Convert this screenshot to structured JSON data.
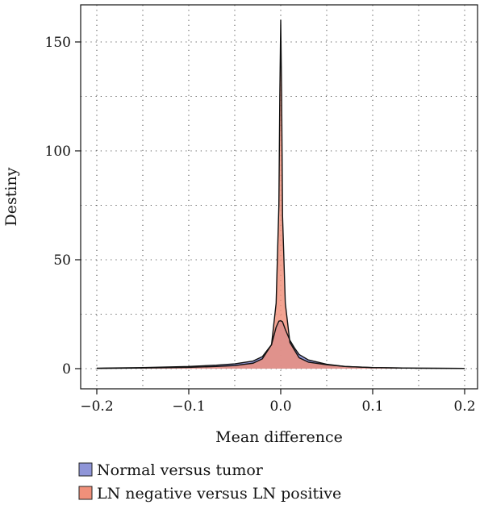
{
  "chart_data": {
    "type": "area",
    "title": "",
    "xlabel": "Mean difference",
    "ylabel": "Destiny",
    "xlim": [
      -0.2,
      0.2
    ],
    "ylim": [
      0,
      165
    ],
    "x_ticks": [
      -0.2,
      -0.1,
      0.0,
      0.1,
      0.2
    ],
    "x_tick_labels": [
      "−0.2",
      "−0.1",
      "0.0",
      "0.1",
      "0.2"
    ],
    "y_ticks": [
      0,
      50,
      100,
      150
    ],
    "y_tick_labels": [
      "0",
      "50",
      "100",
      "150"
    ],
    "grid": true,
    "legend_position": "bottom",
    "series": [
      {
        "name": "Normal versus tumor",
        "color": "#8f95d8",
        "x": [
          -0.2,
          -0.15,
          -0.1,
          -0.07,
          -0.05,
          -0.03,
          -0.02,
          -0.01,
          -0.005,
          -0.002,
          0.0,
          0.002,
          0.005,
          0.01,
          0.015,
          0.02,
          0.03,
          0.05,
          0.07,
          0.1,
          0.15,
          0.2
        ],
        "values": [
          0.2,
          0.5,
          1.0,
          1.6,
          2.2,
          3.5,
          5.5,
          11.0,
          19.0,
          21.8,
          22.0,
          21.5,
          18.0,
          13.0,
          9.5,
          6.5,
          4.0,
          2.0,
          1.0,
          0.5,
          0.2,
          0.1
        ]
      },
      {
        "name": "LN negative versus LN positive",
        "color": "#f0907a",
        "x": [
          -0.2,
          -0.15,
          -0.1,
          -0.07,
          -0.05,
          -0.03,
          -0.02,
          -0.01,
          -0.005,
          -0.002,
          -0.001,
          0.0,
          0.001,
          0.002,
          0.005,
          0.01,
          0.02,
          0.03,
          0.05,
          0.07,
          0.1,
          0.15,
          0.2
        ],
        "values": [
          0.1,
          0.3,
          0.6,
          1.0,
          1.4,
          2.5,
          4.5,
          11.0,
          30.0,
          75.0,
          125.0,
          160.0,
          125.0,
          70.0,
          30.0,
          12.0,
          5.0,
          3.0,
          1.8,
          1.0,
          0.5,
          0.2,
          0.1
        ]
      }
    ]
  }
}
